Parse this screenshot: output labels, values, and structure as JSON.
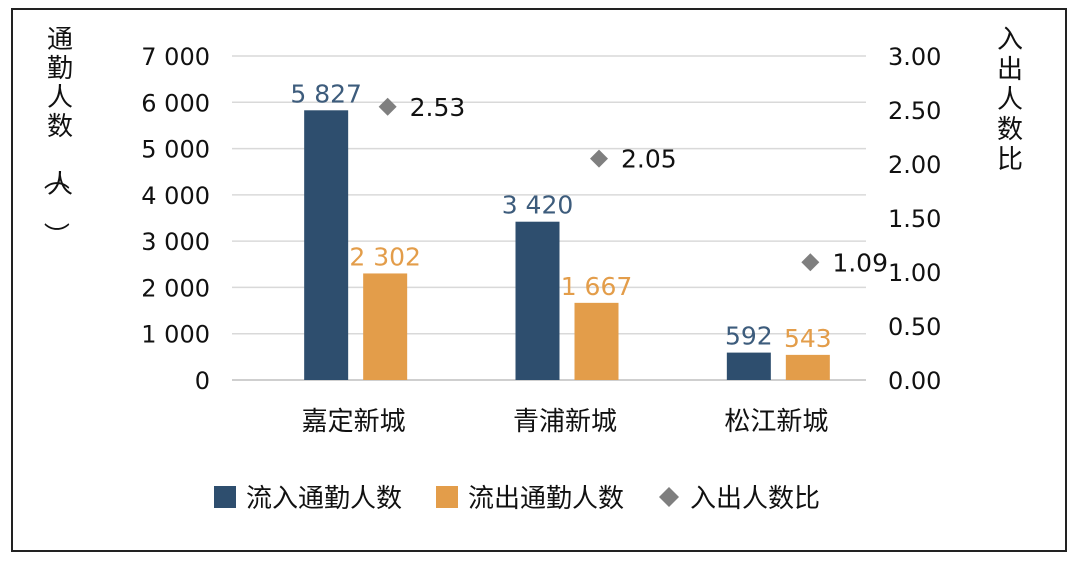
{
  "chart_data": {
    "type": "bar",
    "categories": [
      "嘉定新城",
      "青浦新城",
      "松江新城"
    ],
    "series": [
      {
        "name": "流入通勤人数",
        "kind": "bar",
        "axis": "left",
        "color": "#2e4e6e",
        "values": [
          5827,
          3420,
          592
        ],
        "labels": [
          "5 827",
          "3 420",
          "592"
        ]
      },
      {
        "name": "流出通勤人数",
        "kind": "bar",
        "axis": "left",
        "color": "#e39d4a",
        "values": [
          2302,
          1667,
          543
        ],
        "labels": [
          "2 302",
          "1 667",
          "543"
        ]
      },
      {
        "name": "入出人数比",
        "kind": "scatter",
        "axis": "right",
        "color": "#7f7f7f",
        "values": [
          2.53,
          2.05,
          1.09
        ],
        "labels": [
          "2.53",
          "2.05",
          "1.09"
        ]
      }
    ],
    "ylabel": "通勤人数（人）",
    "y2label": "入出人数比",
    "ylim": [
      0,
      7000
    ],
    "y2lim": [
      0,
      3.0
    ],
    "yticks": [
      "0",
      "1 000",
      "2 000",
      "3 000",
      "4 000",
      "5 000",
      "6 000",
      "7 000"
    ],
    "y2ticks": [
      "0.00",
      "0.50",
      "1.00",
      "1.50",
      "2.00",
      "2.50",
      "3.00"
    ],
    "grid": true,
    "legend_position": "bottom"
  }
}
